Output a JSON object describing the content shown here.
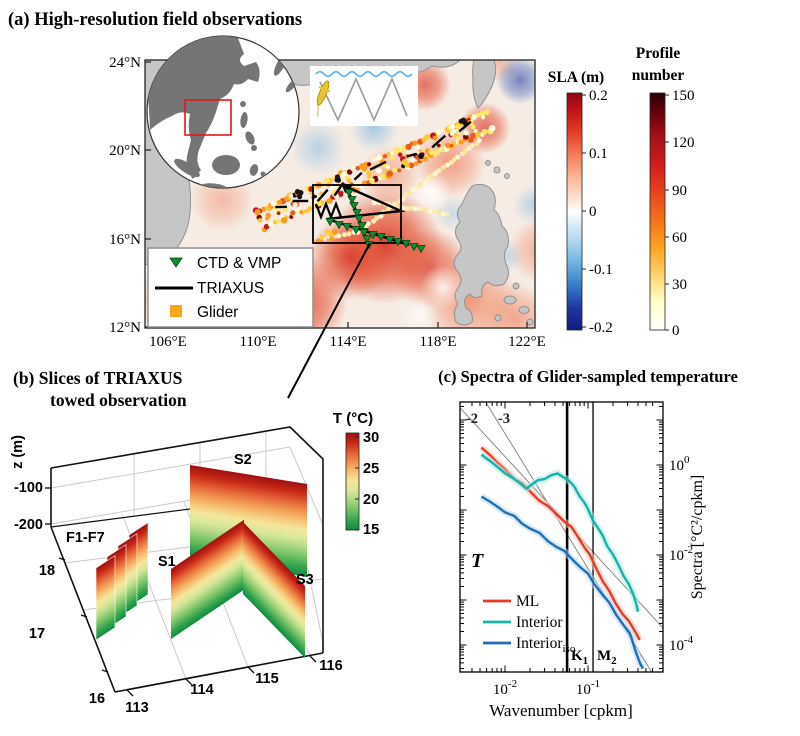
{
  "panel_a": {
    "title": "(a) High-resolution field observations",
    "map": {
      "lat_ticks": [
        "24°N",
        "20°N",
        "16°N",
        "12°N"
      ],
      "lon_ticks": [
        "106°E",
        "110°E",
        "114°E",
        "118°E",
        "122°E"
      ],
      "legend": {
        "items": [
          {
            "label": "CTD & VMP",
            "marker": "triangle",
            "color": "#0e8f35"
          },
          {
            "label": "TRIAXUS",
            "marker": "line",
            "color": "#000000"
          },
          {
            "label": "Glider",
            "marker": "square",
            "color": "#f5a81c"
          }
        ]
      },
      "glider_palette": [
        "#fffbe0",
        "#ffe76a",
        "#ffc53a",
        "#ff9a1e",
        "#e85c20",
        "#c0181d",
        "#7a0808",
        "#151515"
      ]
    },
    "sla_colorbar": {
      "title": "SLA (m)",
      "ticks": [
        "0.2",
        "0.1",
        "0",
        "-0.1",
        "-0.2"
      ],
      "max": 0.2,
      "min": -0.2
    },
    "profile_colorbar": {
      "title_line1": "Profile",
      "title_line2": "number",
      "ticks": [
        "150",
        "120",
        "90",
        "60",
        "30",
        "0"
      ],
      "max": 150,
      "min": 0
    }
  },
  "panel_b": {
    "title_line1": "(b) Slices of TRIAXUS",
    "title_line2": "towed observation",
    "z_axis_label": "z (m)",
    "z_ticks": [
      "-100",
      "-200"
    ],
    "lat_ticks": [
      "18",
      "17",
      "16"
    ],
    "lon_ticks": [
      "113",
      "114",
      "115",
      "116"
    ],
    "slice_labels": {
      "flags": "F1-F7",
      "s1": "S1",
      "s2": "S2",
      "s3": "S3"
    },
    "colorbar": {
      "title": "T (°C)",
      "ticks": [
        "30",
        "25",
        "20",
        "15"
      ],
      "max": 30,
      "min": 15
    }
  },
  "panel_c": {
    "title": "(c) Spectra of Glider-sampled temperature",
    "xlabel": "Wavenumber [cpkm]",
    "ylabel": "Spectra [°C²/cpkm]",
    "x_ticks": [
      {
        "base": "10",
        "exp": "-2"
      },
      {
        "base": "10",
        "exp": "-1"
      }
    ],
    "y_ticks": [
      {
        "base": "10",
        "exp": "0"
      },
      {
        "base": "10",
        "exp": "-2"
      },
      {
        "base": "10",
        "exp": "-4"
      }
    ],
    "slope_labels": [
      "-2",
      "-3"
    ],
    "k1_label": {
      "main": "K",
      "sub": "1"
    },
    "m2_label": {
      "main": "M",
      "sub": "2"
    },
    "t_annotation": "T",
    "legend": [
      {
        "label": "ML",
        "color": "#e8392b"
      },
      {
        "label": "Interior",
        "color": "#17b3aa"
      },
      {
        "label": "Interior",
        "sub": "iso",
        "color": "#1e6fb8"
      }
    ]
  },
  "chart_data": [
    {
      "id": "spectra",
      "type": "line",
      "title": "(c) Spectra of Glider-sampled temperature",
      "xlabel": "Wavenumber [cpkm]",
      "ylabel": "Spectra [°C²/cpkm]",
      "xscale": "log",
      "yscale": "log",
      "xlim": [
        0.003,
        0.65
      ],
      "ylim": [
        2.5e-05,
        25
      ],
      "x_ticks_labeled": [
        0.01,
        0.1
      ],
      "y_ticks_labeled": [
        1,
        0.01,
        0.0001
      ],
      "legend_position": "lower-left",
      "grid": false,
      "annotation": "T",
      "reference_lines": [
        {
          "slope": -2,
          "label": "-2",
          "anchor": [
            0.01,
            1.54
          ]
        },
        {
          "slope": -3,
          "label": "-3",
          "anchor": [
            0.01,
            5.0
          ]
        }
      ],
      "vertical_lines": [
        {
          "label": "K1",
          "k": 0.056,
          "width": 2.6
        },
        {
          "label": "M2",
          "k": 0.115,
          "width": 1.3
        }
      ],
      "series": [
        {
          "name": "ML",
          "color": "#e8392b",
          "band_color": "#f8c9b0",
          "points": [
            [
              0.0052,
              2.45
            ],
            [
              0.0065,
              1.7
            ],
            [
              0.008,
              1.15
            ],
            [
              0.01,
              0.8
            ],
            [
              0.013,
              0.52
            ],
            [
              0.016,
              0.37
            ],
            [
              0.02,
              0.26
            ],
            [
              0.026,
              0.17
            ],
            [
              0.033,
              0.115
            ],
            [
              0.042,
              0.08
            ],
            [
              0.052,
              0.058
            ],
            [
              0.063,
              0.04
            ],
            [
              0.075,
              0.026
            ],
            [
              0.09,
              0.016
            ],
            [
              0.105,
              0.0095
            ],
            [
              0.125,
              0.0052
            ],
            [
              0.15,
              0.0028
            ],
            [
              0.18,
              0.0015
            ],
            [
              0.215,
              0.00085
            ],
            [
              0.26,
              0.00052
            ],
            [
              0.31,
              0.00032
            ],
            [
              0.37,
              0.0002
            ],
            [
              0.42,
              0.00013
            ]
          ]
        },
        {
          "name": "Interior",
          "color": "#17b3aa",
          "band_color": "#aee9e4",
          "points": [
            [
              0.0052,
              1.7
            ],
            [
              0.0065,
              1.25
            ],
            [
              0.008,
              0.92
            ],
            [
              0.01,
              0.7
            ],
            [
              0.0125,
              0.5
            ],
            [
              0.015,
              0.38
            ],
            [
              0.018,
              0.32
            ],
            [
              0.021,
              0.36
            ],
            [
              0.025,
              0.44
            ],
            [
              0.03,
              0.52
            ],
            [
              0.036,
              0.58
            ],
            [
              0.043,
              0.62
            ],
            [
              0.05,
              0.58
            ],
            [
              0.058,
              0.45
            ],
            [
              0.068,
              0.32
            ],
            [
              0.08,
              0.21
            ],
            [
              0.09,
              0.145
            ],
            [
              0.1,
              0.1
            ],
            [
              0.115,
              0.062
            ],
            [
              0.13,
              0.04
            ],
            [
              0.15,
              0.026
            ],
            [
              0.17,
              0.017
            ],
            [
              0.2,
              0.01
            ],
            [
              0.23,
              0.006
            ],
            [
              0.27,
              0.0036
            ],
            [
              0.31,
              0.0022
            ],
            [
              0.35,
              0.0013
            ],
            [
              0.38,
              0.0009
            ],
            [
              0.4,
              0.00055
            ]
          ]
        },
        {
          "name": "Interior_iso",
          "color": "#1e6fb8",
          "band_color": "#b9d7ef",
          "points": [
            [
              0.0052,
              0.2
            ],
            [
              0.0065,
              0.155
            ],
            [
              0.008,
              0.12
            ],
            [
              0.01,
              0.092
            ],
            [
              0.013,
              0.068
            ],
            [
              0.016,
              0.052
            ],
            [
              0.02,
              0.04
            ],
            [
              0.026,
              0.029
            ],
            [
              0.033,
              0.021
            ],
            [
              0.042,
              0.0155
            ],
            [
              0.052,
              0.0115
            ],
            [
              0.065,
              0.0082
            ],
            [
              0.08,
              0.0056
            ],
            [
              0.1,
              0.0036
            ],
            [
              0.12,
              0.0023
            ],
            [
              0.15,
              0.00135
            ],
            [
              0.18,
              0.00082
            ],
            [
              0.22,
              0.00048
            ],
            [
              0.27,
              0.00028
            ],
            [
              0.32,
              0.00017
            ],
            [
              0.38,
              7e-05
            ],
            [
              0.43,
              3.8e-05
            ],
            [
              0.46,
              3e-05
            ]
          ]
        }
      ]
    }
  ]
}
